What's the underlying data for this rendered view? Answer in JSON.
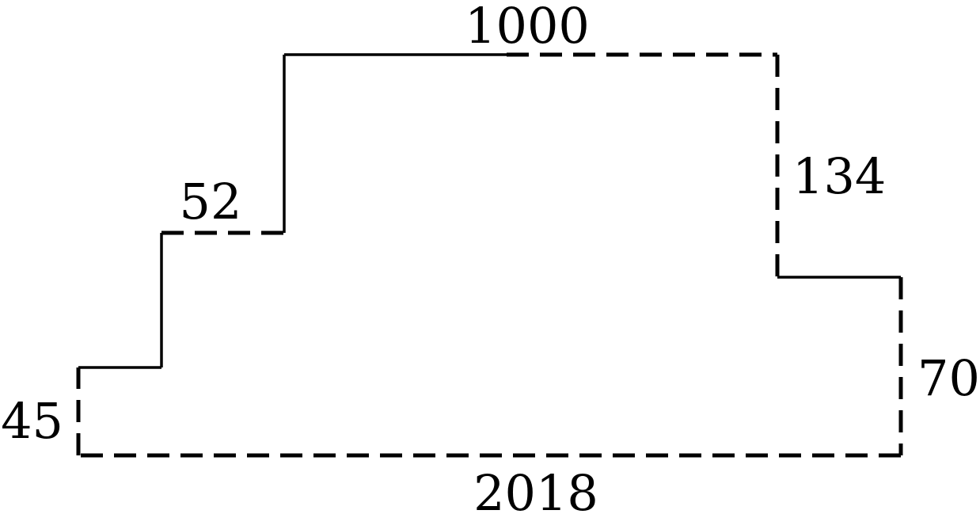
{
  "diagram": {
    "labels": {
      "top": "1000",
      "left_step_top": "52",
      "right_upper_side": "134",
      "right_lower_side": "70",
      "left_side": "45",
      "bottom": "2018"
    }
  }
}
